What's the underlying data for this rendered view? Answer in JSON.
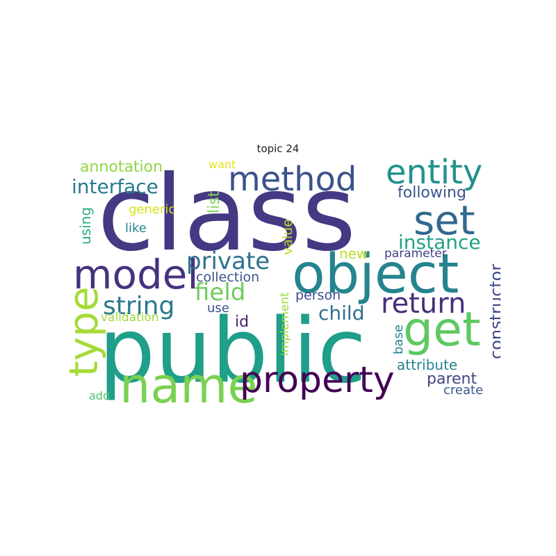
{
  "title": "topic 24",
  "words": [
    {
      "text": "class",
      "color": "#443983"
    },
    {
      "text": "public",
      "color": "#1f9e89"
    },
    {
      "text": "object",
      "color": "#25848e"
    },
    {
      "text": "name",
      "color": "#7ad151"
    },
    {
      "text": "property",
      "color": "#440154"
    },
    {
      "text": "model",
      "color": "#46327e"
    },
    {
      "text": "method",
      "color": "#3b528b"
    },
    {
      "text": "entity",
      "color": "#21918c"
    },
    {
      "text": "set",
      "color": "#31688e"
    },
    {
      "text": "get",
      "color": "#5ec962"
    },
    {
      "text": "type",
      "color": "#a5db36"
    },
    {
      "text": "return",
      "color": "#472d7b"
    },
    {
      "text": "string",
      "color": "#2a788e"
    },
    {
      "text": "private",
      "color": "#2c728e"
    },
    {
      "text": "field",
      "color": "#6ccd5a"
    },
    {
      "text": "interface",
      "color": "#287c8e"
    },
    {
      "text": "instance",
      "color": "#20a386"
    },
    {
      "text": "child",
      "color": "#2e6f8e"
    },
    {
      "text": "constructor",
      "color": "#3e4989"
    },
    {
      "text": "annotation",
      "color": "#90d743"
    },
    {
      "text": "following",
      "color": "#39568c"
    },
    {
      "text": "attribute",
      "color": "#26828e"
    },
    {
      "text": "parent",
      "color": "#414487"
    },
    {
      "text": "collection",
      "color": "#3b528b"
    },
    {
      "text": "person",
      "color": "#3e4a89"
    },
    {
      "text": "list",
      "color": "#7fd34e"
    },
    {
      "text": "value",
      "color": "#b5de2b"
    },
    {
      "text": "using",
      "color": "#26ad81"
    },
    {
      "text": "id",
      "color": "#481f70"
    },
    {
      "text": "generic",
      "color": "#d8e219"
    },
    {
      "text": "like",
      "color": "#23898e"
    },
    {
      "text": "parameter",
      "color": "#424086"
    },
    {
      "text": "new",
      "color": "#b8de29"
    },
    {
      "text": "create",
      "color": "#38598c"
    },
    {
      "text": "base",
      "color": "#24878e"
    },
    {
      "text": "implement",
      "color": "#9dd93b"
    },
    {
      "text": "use",
      "color": "#3b518b"
    },
    {
      "text": "validation",
      "color": "#9bd93c"
    },
    {
      "text": "add",
      "color": "#4ac16d"
    },
    {
      "text": "want",
      "color": "#e5e419"
    }
  ]
}
